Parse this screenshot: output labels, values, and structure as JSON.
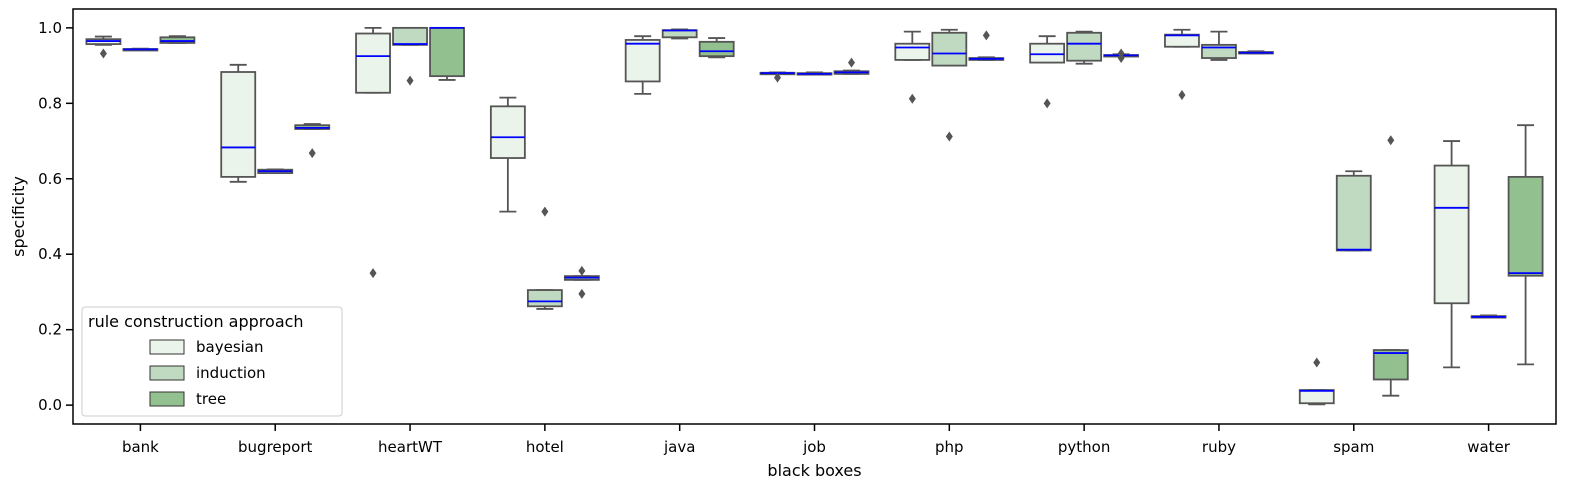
{
  "chart_data": {
    "type": "box",
    "title": "",
    "xlabel": "black boxes",
    "ylabel": "specificity",
    "ylim": [
      -0.05,
      1.05
    ],
    "yticks": [
      0.0,
      0.2,
      0.4,
      0.6,
      0.8,
      1.0
    ],
    "ytick_labels": [
      "0.0",
      "0.2",
      "0.4",
      "0.6",
      "0.8",
      "1.0"
    ],
    "categories": [
      "bank",
      "bugreport",
      "heartWT",
      "hotel",
      "java",
      "job",
      "php",
      "python",
      "ruby",
      "spam",
      "water"
    ],
    "grid": false,
    "median_color": "#0000ff",
    "box_edge_color": "#555555",
    "legend": {
      "title": "rule construction approach",
      "placement": "lower-left"
    },
    "series": [
      {
        "name": "bayesian",
        "color": "#ebf4ea",
        "boxes": [
          {
            "whislo": 0.955,
            "q1": 0.957,
            "med": 0.965,
            "q3": 0.97,
            "whishi": 0.977,
            "fliers": [
              0.932
            ]
          },
          {
            "whislo": 0.592,
            "q1": 0.605,
            "med": 0.683,
            "q3": 0.883,
            "whishi": 0.902,
            "fliers": []
          },
          {
            "whislo": 0.828,
            "q1": 0.828,
            "med": 0.925,
            "q3": 0.985,
            "whishi": 1.0,
            "fliers": [
              0.35
            ]
          },
          {
            "whislo": 0.513,
            "q1": 0.655,
            "med": 0.71,
            "q3": 0.792,
            "whishi": 0.815,
            "fliers": []
          },
          {
            "whislo": 0.825,
            "q1": 0.858,
            "med": 0.958,
            "q3": 0.968,
            "whishi": 0.978,
            "fliers": []
          },
          {
            "whislo": 0.879,
            "q1": 0.879,
            "med": 0.88,
            "q3": 0.881,
            "whishi": 0.882,
            "fliers": [
              0.868
            ]
          },
          {
            "whislo": 0.915,
            "q1": 0.915,
            "med": 0.948,
            "q3": 0.958,
            "whishi": 0.99,
            "fliers": [
              0.812
            ]
          },
          {
            "whislo": 0.908,
            "q1": 0.908,
            "med": 0.93,
            "q3": 0.958,
            "whishi": 0.978,
            "fliers": [
              0.8
            ]
          },
          {
            "whislo": 0.95,
            "q1": 0.95,
            "med": 0.98,
            "q3": 0.982,
            "whishi": 0.995,
            "fliers": [
              0.822
            ]
          },
          {
            "whislo": 0.002,
            "q1": 0.005,
            "med": 0.038,
            "q3": 0.04,
            "whishi": 0.04,
            "fliers": [
              0.113
            ]
          },
          {
            "whislo": 0.1,
            "q1": 0.27,
            "med": 0.523,
            "q3": 0.635,
            "whishi": 0.7,
            "fliers": []
          }
        ]
      },
      {
        "name": "induction",
        "color": "#c0dac1",
        "boxes": [
          {
            "whislo": 0.942,
            "q1": 0.942,
            "med": 0.943,
            "q3": 0.944,
            "whishi": 0.945,
            "fliers": []
          },
          {
            "whislo": 0.615,
            "q1": 0.615,
            "med": 0.62,
            "q3": 0.624,
            "whishi": 0.625,
            "fliers": []
          },
          {
            "whislo": 0.955,
            "q1": 0.955,
            "med": 0.957,
            "q3": 1.0,
            "whishi": 1.0,
            "fliers": [
              0.86
            ]
          },
          {
            "whislo": 0.255,
            "q1": 0.262,
            "med": 0.275,
            "q3": 0.305,
            "whishi": 0.305,
            "fliers": [
              0.513
            ]
          },
          {
            "whislo": 0.972,
            "q1": 0.975,
            "med": 0.993,
            "q3": 0.994,
            "whishi": 0.996,
            "fliers": []
          },
          {
            "whislo": 0.876,
            "q1": 0.876,
            "med": 0.878,
            "q3": 0.88,
            "whishi": 0.882,
            "fliers": []
          },
          {
            "whislo": 0.9,
            "q1": 0.9,
            "med": 0.932,
            "q3": 0.987,
            "whishi": 0.995,
            "fliers": [
              0.712
            ]
          },
          {
            "whislo": 0.905,
            "q1": 0.913,
            "med": 0.958,
            "q3": 0.987,
            "whishi": 0.99,
            "fliers": []
          },
          {
            "whislo": 0.915,
            "q1": 0.92,
            "med": 0.948,
            "q3": 0.955,
            "whishi": 0.99,
            "fliers": []
          },
          {
            "whislo": 0.41,
            "q1": 0.41,
            "med": 0.412,
            "q3": 0.608,
            "whishi": 0.62,
            "fliers": []
          },
          {
            "whislo": 0.232,
            "q1": 0.232,
            "med": 0.234,
            "q3": 0.236,
            "whishi": 0.238,
            "fliers": []
          }
        ]
      },
      {
        "name": "tree",
        "color": "#93c08f",
        "boxes": [
          {
            "whislo": 0.96,
            "q1": 0.96,
            "med": 0.965,
            "q3": 0.975,
            "whishi": 0.978,
            "fliers": []
          },
          {
            "whislo": 0.732,
            "q1": 0.732,
            "med": 0.735,
            "q3": 0.742,
            "whishi": 0.745,
            "fliers": [
              0.668
            ]
          },
          {
            "whislo": 0.862,
            "q1": 0.872,
            "med": 1.0,
            "q3": 1.0,
            "whishi": 1.0,
            "fliers": []
          },
          {
            "whislo": 0.332,
            "q1": 0.332,
            "med": 0.338,
            "q3": 0.342,
            "whishi": 0.342,
            "fliers": [
              0.356,
              0.295
            ]
          },
          {
            "whislo": 0.922,
            "q1": 0.925,
            "med": 0.938,
            "q3": 0.963,
            "whishi": 0.973,
            "fliers": []
          },
          {
            "whislo": 0.878,
            "q1": 0.878,
            "med": 0.882,
            "q3": 0.885,
            "whishi": 0.887,
            "fliers": [
              0.908
            ]
          },
          {
            "whislo": 0.915,
            "q1": 0.915,
            "med": 0.918,
            "q3": 0.92,
            "whishi": 0.922,
            "fliers": [
              0.98
            ]
          },
          {
            "whislo": 0.925,
            "q1": 0.925,
            "med": 0.927,
            "q3": 0.928,
            "whishi": 0.93,
            "fliers": [
              0.932,
              0.92
            ]
          },
          {
            "whislo": 0.932,
            "q1": 0.932,
            "med": 0.934,
            "q3": 0.936,
            "whishi": 0.938,
            "fliers": []
          },
          {
            "whislo": 0.025,
            "q1": 0.068,
            "med": 0.138,
            "q3": 0.146,
            "whishi": 0.146,
            "fliers": [
              0.702
            ]
          },
          {
            "whislo": 0.108,
            "q1": 0.343,
            "med": 0.35,
            "q3": 0.605,
            "whishi": 0.742,
            "fliers": []
          }
        ]
      }
    ]
  }
}
